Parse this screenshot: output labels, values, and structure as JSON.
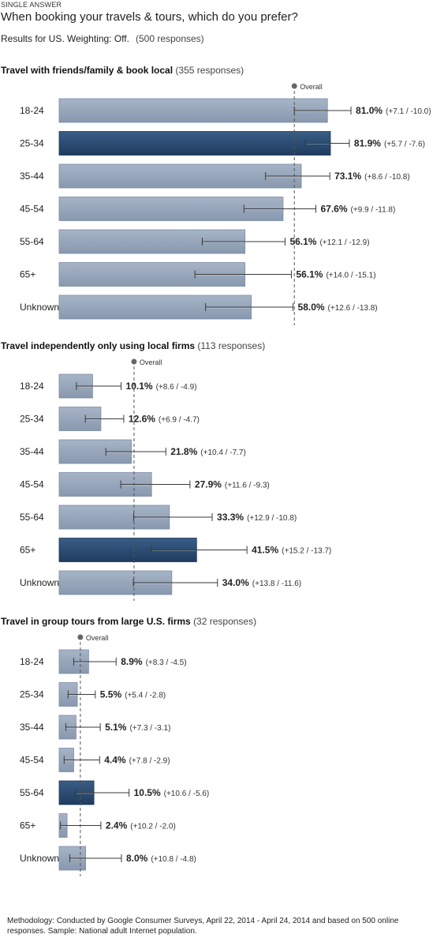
{
  "header": {
    "type_label": "SINGLE ANSWER",
    "question": "When booking your travels & tours, which do you prefer?",
    "results_for": "Results for US. Weighting: Off.",
    "responses": "(500 responses)"
  },
  "footer": {
    "methodology": "Methodology: Conducted by Google Consumer Surveys, April 22, 2014 - April 24, 2014 and based on 500 online responses. Sample: National adult Internet population."
  },
  "colors": {
    "bar_normal": "#95a5bb",
    "bar_highlight": "#2c4d74",
    "error_bar": "#444444",
    "overall_line": "#555555"
  },
  "overall_label": "Overall",
  "chart_data": [
    {
      "type": "bar",
      "orientation": "horizontal",
      "title": "Travel with friends/family & book local",
      "responses": "(355 responses)",
      "overall": 71,
      "xlim": [
        0,
        100
      ],
      "categories": [
        "18-24",
        "25-34",
        "35-44",
        "45-54",
        "55-64",
        "65+",
        "Unknown"
      ],
      "values": [
        81.0,
        81.9,
        73.1,
        67.6,
        56.1,
        56.1,
        58.0
      ],
      "labels": [
        "81.0%",
        "81.9%",
        "73.1%",
        "67.6%",
        "56.1%",
        "56.1%",
        "58.0%"
      ],
      "err_plus": [
        7.1,
        5.7,
        8.6,
        9.9,
        12.1,
        14.0,
        12.6
      ],
      "err_minus": [
        10.0,
        7.6,
        10.8,
        11.8,
        12.9,
        15.1,
        13.8
      ],
      "ci_labels": [
        "(+7.1 / -10.0)",
        "(+5.7 / -7.6)",
        "(+8.6 / -10.8)",
        "(+9.9 / -11.8)",
        "(+12.1 / -12.9)",
        "(+14.0 / -15.1)",
        "(+12.6 / -13.8)"
      ],
      "highlight": [
        false,
        true,
        false,
        false,
        false,
        false,
        false
      ]
    },
    {
      "type": "bar",
      "orientation": "horizontal",
      "title": "Travel independently only using local firms",
      "responses": "(113 responses)",
      "overall": 22.6,
      "xlim": [
        0,
        100
      ],
      "categories": [
        "18-24",
        "25-34",
        "35-44",
        "45-54",
        "55-64",
        "65+",
        "Unknown"
      ],
      "values": [
        10.1,
        12.6,
        21.8,
        27.9,
        33.3,
        41.5,
        34.0
      ],
      "labels": [
        "10.1%",
        "12.6%",
        "21.8%",
        "27.9%",
        "33.3%",
        "41.5%",
        "34.0%"
      ],
      "err_plus": [
        8.6,
        6.9,
        10.4,
        11.6,
        12.9,
        15.2,
        13.8
      ],
      "err_minus": [
        4.9,
        4.7,
        7.7,
        9.3,
        10.8,
        13.7,
        11.6
      ],
      "ci_labels": [
        "(+8.6 / -4.9)",
        "(+6.9 / -4.7)",
        "(+10.4 / -7.7)",
        "(+11.6 / -9.3)",
        "(+12.9 / -10.8)",
        "(+15.2 / -13.7)",
        "(+13.8 / -11.6)"
      ],
      "highlight": [
        false,
        false,
        false,
        false,
        false,
        true,
        false
      ]
    },
    {
      "type": "bar",
      "orientation": "horizontal",
      "title": "Travel in group tours from large U.S. firms",
      "responses": "(32 responses)",
      "overall": 6.4,
      "xlim": [
        0,
        100
      ],
      "categories": [
        "18-24",
        "25-34",
        "35-44",
        "45-54",
        "55-64",
        "65+",
        "Unknown"
      ],
      "values": [
        8.9,
        5.5,
        5.1,
        4.4,
        10.5,
        2.4,
        8.0
      ],
      "labels": [
        "8.9%",
        "5.5%",
        "5.1%",
        "4.4%",
        "10.5%",
        "2.4%",
        "8.0%"
      ],
      "err_plus": [
        8.3,
        5.4,
        7.3,
        7.8,
        10.6,
        10.2,
        10.8
      ],
      "err_minus": [
        4.5,
        2.8,
        3.1,
        2.9,
        5.6,
        2.0,
        4.8
      ],
      "ci_labels": [
        "(+8.3 / -4.5)",
        "(+5.4 / -2.8)",
        "(+7.3 / -3.1)",
        "(+7.8 / -2.9)",
        "(+10.6 / -5.6)",
        "(+10.2 / -2.0)",
        "(+10.8 / -4.8)"
      ],
      "highlight": [
        false,
        false,
        false,
        false,
        true,
        false,
        false
      ]
    }
  ]
}
